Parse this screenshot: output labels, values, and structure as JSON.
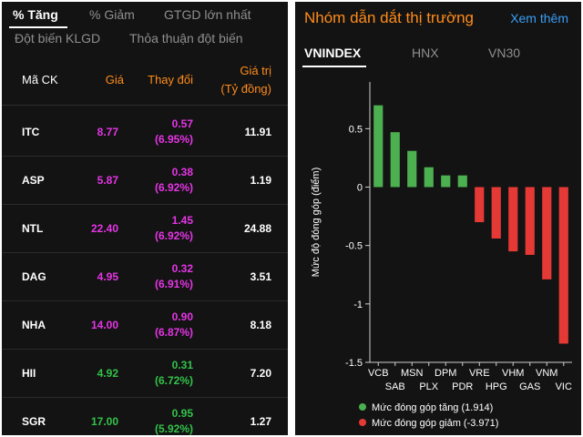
{
  "left_tabs": {
    "row1": [
      {
        "label": "% Tăng",
        "active": true
      },
      {
        "label": "% Giảm",
        "active": false
      },
      {
        "label": "GTGD lớn nhất",
        "active": false
      }
    ],
    "row2": [
      {
        "label": "Đột biến KLGD",
        "active": false
      },
      {
        "label": "Thỏa thuận đột biến",
        "active": false
      }
    ]
  },
  "table": {
    "headers": {
      "code": "Mã CK",
      "price": "Giá",
      "change": "Thay đổi",
      "value_line1": "Giá trị",
      "value_line2": "(Tỷ đồng)"
    },
    "rows": [
      {
        "code": "ITC",
        "price": "8.77",
        "change": "0.57",
        "pct": "(6.95%)",
        "value": "11.91",
        "color": "#e535e5"
      },
      {
        "code": "ASP",
        "price": "5.87",
        "change": "0.38",
        "pct": "(6.92%)",
        "value": "1.19",
        "color": "#e535e5"
      },
      {
        "code": "NTL",
        "price": "22.40",
        "change": "1.45",
        "pct": "(6.92%)",
        "value": "24.88",
        "color": "#e535e5"
      },
      {
        "code": "DAG",
        "price": "4.95",
        "change": "0.32",
        "pct": "(6.91%)",
        "value": "3.51",
        "color": "#e535e5"
      },
      {
        "code": "NHA",
        "price": "14.00",
        "change": "0.90",
        "pct": "(6.87%)",
        "value": "8.18",
        "color": "#e535e5"
      },
      {
        "code": "HII",
        "price": "4.92",
        "change": "0.31",
        "pct": "(6.72%)",
        "value": "7.20",
        "color": "#33c24a"
      },
      {
        "code": "SGR",
        "price": "17.00",
        "change": "0.95",
        "pct": "(5.92%)",
        "value": "1.27",
        "color": "#33c24a"
      }
    ]
  },
  "right": {
    "title": "Nhóm dẫn dắt thị trường",
    "more_label": "Xem thêm",
    "tabs": [
      {
        "label": "VNINDEX",
        "active": true
      },
      {
        "label": "HNX",
        "active": false
      },
      {
        "label": "VN30",
        "active": false
      }
    ]
  },
  "chart_data": {
    "type": "bar",
    "ylabel": "Mức độ đóng góp (điểm)",
    "ylim": [
      -1.5,
      0.9
    ],
    "yticks": [
      -1.5,
      -1,
      -0.5,
      0,
      0.5
    ],
    "ytick_labels": [
      "-1.5",
      "-1",
      "-0.5",
      "0",
      "0.5"
    ],
    "categories": [
      "VCB",
      "SAB",
      "MSN",
      "PLX",
      "DPM",
      "PDR",
      "VRE",
      "HPG",
      "VHM",
      "GAS",
      "VNM",
      "VIC"
    ],
    "values": [
      0.7,
      0.47,
      0.31,
      0.17,
      0.1,
      0.1,
      -0.3,
      -0.44,
      -0.55,
      -0.58,
      -0.79,
      -1.34
    ],
    "bar_colors": [
      "#4caf50",
      "#4caf50",
      "#4caf50",
      "#4caf50",
      "#4caf50",
      "#4caf50",
      "#e53935",
      "#e53935",
      "#e53935",
      "#e53935",
      "#e53935",
      "#e53935"
    ],
    "legend": [
      {
        "label": "Mức đóng góp tăng (1.914)",
        "color": "#4caf50"
      },
      {
        "label": "Mức đóng góp giảm (-3.971)",
        "color": "#e53935"
      }
    ]
  }
}
